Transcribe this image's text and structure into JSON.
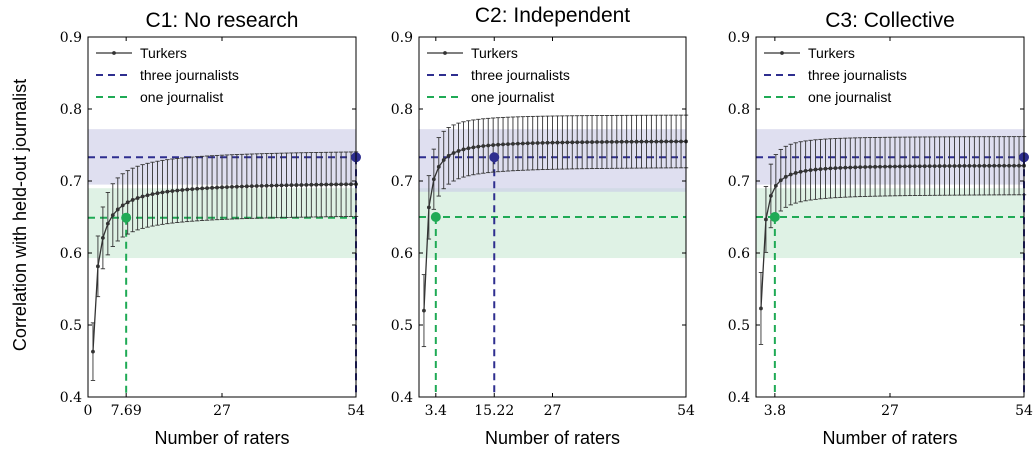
{
  "colors": {
    "turkers": "#333333",
    "three_journalists": "#2e2e8f",
    "one_journalist": "#1faa55",
    "three_band": "#c9c9e6",
    "one_band": "#c9ead4"
  },
  "ylabel": "Correlation with held-out journalist",
  "chart_data": [
    {
      "type": "line",
      "title": "C1: No research",
      "xlabel": "Number of raters",
      "xlim": [
        0,
        54
      ],
      "ylim": [
        0.4,
        0.9
      ],
      "xticks": [
        0,
        7.69,
        27,
        54
      ],
      "xtick_labels": [
        "0",
        "7.69",
        "27",
        "54"
      ],
      "yticks": [
        0.4,
        0.5,
        0.6,
        0.7,
        0.8,
        0.9
      ],
      "ytick_labels": [
        "0.4",
        "0.5",
        "0.6",
        "0.7",
        "0.8",
        "0.9"
      ],
      "grid": false,
      "legend": "top-left",
      "legend_labels": [
        "Turkers",
        "three journalists",
        "one journalist"
      ],
      "three_journalists": {
        "mean": 0.733,
        "band": [
          0.695,
          0.772
        ],
        "crossover": 54
      },
      "one_journalist": {
        "mean": 0.649,
        "band": [
          0.593,
          0.69
        ],
        "crossover": 7.69
      },
      "turkers": {
        "n_points": 54,
        "y1": 0.463,
        "asymptote": 0.7,
        "k": 1.0,
        "err1": 0.04,
        "err_inf": 0.045
      }
    },
    {
      "type": "line",
      "title": "C2: Independent",
      "xlabel": "Number of raters",
      "xlim": [
        0,
        54
      ],
      "ylim": [
        0.4,
        0.9
      ],
      "xticks": [
        3.4,
        15.22,
        27,
        54
      ],
      "xtick_labels": [
        "3.4",
        "15.22",
        "27",
        "54"
      ],
      "yticks": [
        0.4,
        0.5,
        0.6,
        0.7,
        0.8,
        0.9
      ],
      "ytick_labels": [
        "0.4",
        "0.5",
        "0.6",
        "0.7",
        "0.8",
        "0.9"
      ],
      "grid": false,
      "legend": "top-left",
      "legend_labels": [
        "Turkers",
        "three journalists",
        "one journalist"
      ],
      "three_journalists": {
        "mean": 0.733,
        "band": [
          0.685,
          0.772
        ],
        "crossover": 15.22
      },
      "one_journalist": {
        "mean": 0.65,
        "band": [
          0.593,
          0.69
        ],
        "crossover": 3.4
      },
      "turkers": {
        "n_points": 54,
        "y1": 0.52,
        "asymptote": 0.756,
        "k": 1.35,
        "err1": 0.05,
        "err_inf": 0.036
      }
    },
    {
      "type": "line",
      "title": "C3: Collective",
      "xlabel": "Number of raters",
      "xlim": [
        0,
        54
      ],
      "ylim": [
        0.4,
        0.9
      ],
      "xticks": [
        3.8,
        27,
        54
      ],
      "xtick_labels": [
        "3.8",
        "27",
        "54"
      ],
      "yticks": [
        0.4,
        0.5,
        0.6,
        0.7,
        0.8,
        0.9
      ],
      "ytick_labels": [
        "0.4",
        "0.5",
        "0.6",
        "0.7",
        "0.8",
        "0.9"
      ],
      "grid": false,
      "legend": "top-left",
      "legend_labels": [
        "Turkers",
        "three journalists",
        "one journalist"
      ],
      "three_journalists": {
        "mean": 0.733,
        "band": [
          0.695,
          0.772
        ],
        "crossover": 54
      },
      "one_journalist": {
        "mean": 0.65,
        "band": [
          0.593,
          0.69
        ],
        "crossover": 3.8
      },
      "turkers": {
        "n_points": 54,
        "y1": 0.523,
        "asymptote": 0.722,
        "k": 1.4,
        "err1": 0.05,
        "err_inf": 0.04
      }
    }
  ]
}
